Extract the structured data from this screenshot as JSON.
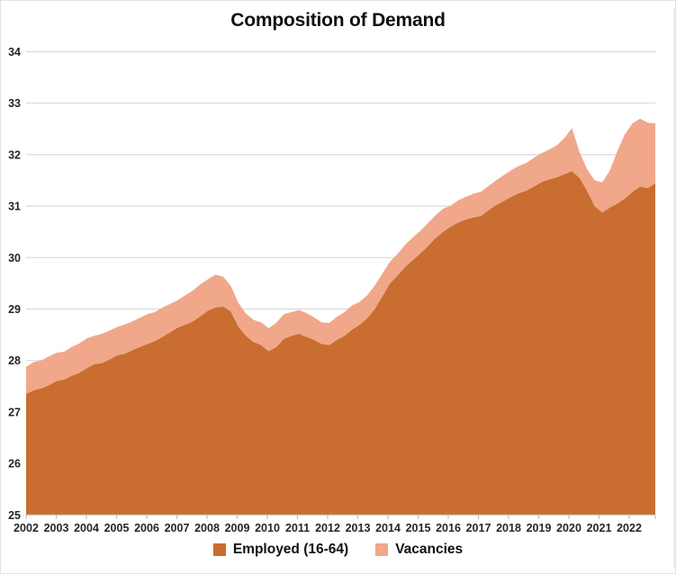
{
  "title": "Composition of Demand",
  "legend": [
    {
      "label": "Employed (16-64)",
      "color": "#C96E30"
    },
    {
      "label": "Vacancies",
      "color": "#F0A78A"
    }
  ],
  "colors": {
    "employed_fill": "#C96E30",
    "vacancies_fill": "#F0A78A",
    "gridline": "#D9D9D9",
    "axis_line": "#BFBFBF",
    "tick": "#BFBFBF",
    "label_text": "#262626",
    "title_text": "#111111",
    "background": "#FFFFFF"
  },
  "chart_data": {
    "type": "area",
    "stacked": true,
    "title": "Composition of Demand",
    "xlabel": "",
    "ylabel": "",
    "ylim": [
      25,
      34
    ],
    "grid": true,
    "legend_position": "bottom",
    "y_ticks": [
      34,
      33,
      32,
      31,
      30,
      29,
      28,
      27,
      26,
      25
    ],
    "x_tick_years": [
      "2002",
      "2003",
      "2004",
      "2005",
      "2006",
      "2007",
      "2008",
      "2009",
      "2010",
      "2011",
      "2012",
      "2013",
      "2014",
      "2015",
      "2016",
      "2017",
      "2018",
      "2019",
      "2020",
      "2021",
      "2022"
    ],
    "points_per_year": 4,
    "x_start_label": "2002-Q1",
    "x_end_label": "2022-Q4",
    "series": [
      {
        "name": "Employed (16-64)",
        "color": "#C96E30",
        "values": [
          27.35,
          27.42,
          27.46,
          27.52,
          27.6,
          27.63,
          27.7,
          27.76,
          27.85,
          27.93,
          27.95,
          28.02,
          28.1,
          28.13,
          28.2,
          28.26,
          28.32,
          28.38,
          28.46,
          28.55,
          28.64,
          28.7,
          28.76,
          28.86,
          28.97,
          29.03,
          29.05,
          28.95,
          28.66,
          28.48,
          28.36,
          28.3,
          28.18,
          28.26,
          28.42,
          28.48,
          28.52,
          28.46,
          28.4,
          28.32,
          28.3,
          28.4,
          28.48,
          28.6,
          28.7,
          28.82,
          29.0,
          29.25,
          29.5,
          29.65,
          29.82,
          29.95,
          30.08,
          30.22,
          30.38,
          30.5,
          30.6,
          30.68,
          30.74,
          30.78,
          30.81,
          30.92,
          31.02,
          31.1,
          31.18,
          31.25,
          31.3,
          31.38,
          31.47,
          31.52,
          31.56,
          31.62,
          31.68,
          31.55,
          31.3,
          31.0,
          30.88,
          30.97,
          31.05,
          31.15,
          31.28,
          31.38,
          31.35,
          31.44
        ]
      },
      {
        "name": "Vacancies",
        "color": "#F0A78A",
        "values": [
          0.53,
          0.55,
          0.54,
          0.56,
          0.55,
          0.54,
          0.56,
          0.57,
          0.58,
          0.55,
          0.57,
          0.56,
          0.55,
          0.57,
          0.56,
          0.57,
          0.58,
          0.56,
          0.57,
          0.55,
          0.53,
          0.57,
          0.6,
          0.62,
          0.61,
          0.64,
          0.58,
          0.5,
          0.46,
          0.43,
          0.43,
          0.44,
          0.45,
          0.47,
          0.48,
          0.46,
          0.46,
          0.46,
          0.44,
          0.42,
          0.43,
          0.45,
          0.46,
          0.47,
          0.44,
          0.45,
          0.46,
          0.44,
          0.42,
          0.42,
          0.43,
          0.44,
          0.44,
          0.45,
          0.44,
          0.45,
          0.41,
          0.43,
          0.44,
          0.46,
          0.47,
          0.47,
          0.48,
          0.5,
          0.52,
          0.53,
          0.54,
          0.56,
          0.56,
          0.58,
          0.62,
          0.7,
          0.84,
          0.5,
          0.42,
          0.5,
          0.58,
          0.72,
          1.02,
          1.25,
          1.33,
          1.32,
          1.27,
          1.17
        ]
      }
    ]
  }
}
